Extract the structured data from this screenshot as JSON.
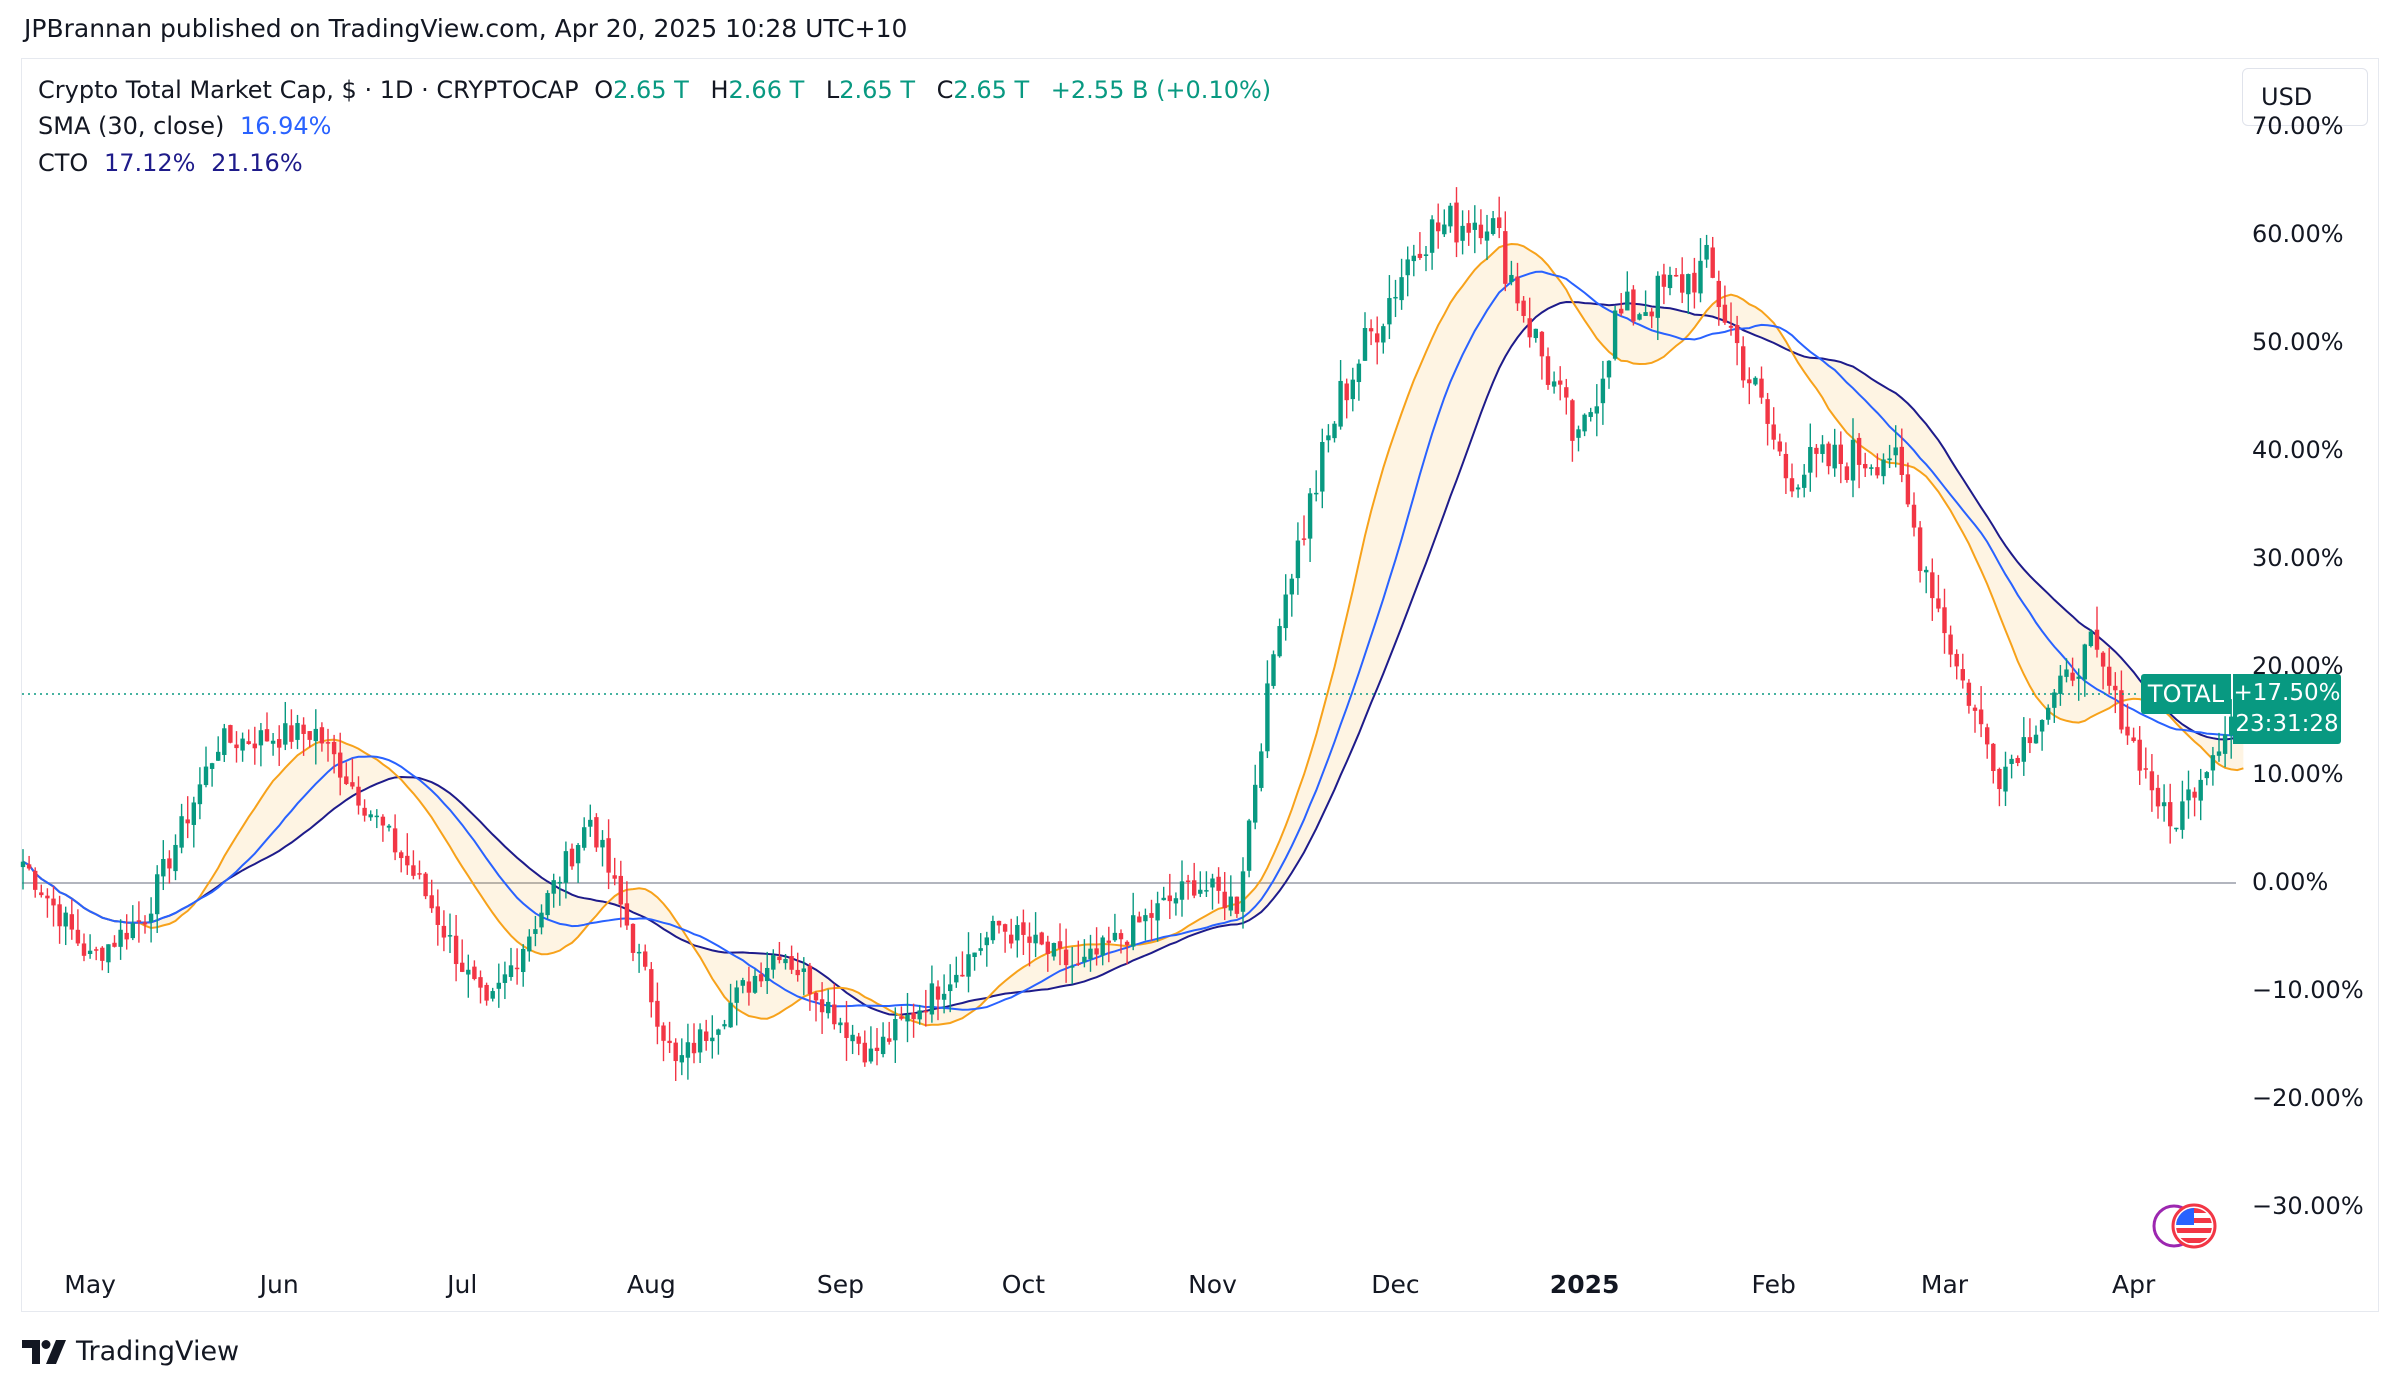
{
  "byline": "JPBrannan published on TradingView.com, Apr 20, 2025 10:28 UTC+10",
  "legend": {
    "symbol": "Crypto Total Market Cap, $ · 1D · CRYPTOCAP",
    "open_label": "O",
    "open": "2.65 T",
    "high_label": "H",
    "high": "2.66 T",
    "low_label": "L",
    "low": "2.65 T",
    "close_label": "C",
    "close": "2.65 T",
    "change": "+2.55 B (+0.10%)",
    "sma_label": "SMA (30, close)",
    "sma_value": "16.94%",
    "cto_label": "CTO",
    "cto_value_1": "17.12%",
    "cto_value_2": "21.16%"
  },
  "currency_button": "USD",
  "price_badge": {
    "symbol": "TOTAL",
    "value": "+17.50%",
    "countdown": "23:31:28"
  },
  "footer_brand": "TradingView",
  "colors": {
    "up": "#089981",
    "down": "#f23645",
    "sma": "#2962ff",
    "cto_fast": "#f7a21b",
    "cto_slow": "#1e1b8a",
    "cto_mid": "#b2b5be"
  },
  "chart_data": {
    "type": "candlestick",
    "y_axis_unit": "percent",
    "ylim": [
      -35,
      72
    ],
    "y_ticks": [
      "−30.00%",
      "−20.00%",
      "−10.00%",
      "0.00%",
      "10.00%",
      "20.00%",
      "30.00%",
      "40.00%",
      "50.00%",
      "60.00%",
      "70.00%"
    ],
    "x_ticks": [
      "May",
      "Jun",
      "Jul",
      "Aug",
      "Sep",
      "Oct",
      "Nov",
      "Dec",
      "2025",
      "Feb",
      "Mar",
      "Apr"
    ],
    "last_value": 17.5,
    "key_points": [
      {
        "date": "2024-04-20",
        "value": 2
      },
      {
        "date": "2024-05-01",
        "value": -7
      },
      {
        "date": "2024-05-10",
        "value": -3
      },
      {
        "date": "2024-05-22",
        "value": 13
      },
      {
        "date": "2024-06-07",
        "value": 14
      },
      {
        "date": "2024-06-24",
        "value": 0
      },
      {
        "date": "2024-07-05",
        "value": -12
      },
      {
        "date": "2024-07-22",
        "value": 6
      },
      {
        "date": "2024-08-05",
        "value": -17
      },
      {
        "date": "2024-08-22",
        "value": -6
      },
      {
        "date": "2024-09-06",
        "value": -16
      },
      {
        "date": "2024-09-27",
        "value": -4
      },
      {
        "date": "2024-10-10",
        "value": -8
      },
      {
        "date": "2024-10-29",
        "value": 0
      },
      {
        "date": "2024-11-05",
        "value": -2
      },
      {
        "date": "2024-11-12",
        "value": 25
      },
      {
        "date": "2024-11-22",
        "value": 45
      },
      {
        "date": "2024-12-05",
        "value": 60
      },
      {
        "date": "2024-12-16",
        "value": 62
      },
      {
        "date": "2024-12-31",
        "value": 40
      },
      {
        "date": "2025-01-06",
        "value": 52
      },
      {
        "date": "2025-01-21",
        "value": 57
      },
      {
        "date": "2025-02-03",
        "value": 38
      },
      {
        "date": "2025-02-20",
        "value": 40
      },
      {
        "date": "2025-03-03",
        "value": 20
      },
      {
        "date": "2025-03-10",
        "value": 10
      },
      {
        "date": "2025-03-25",
        "value": 22
      },
      {
        "date": "2025-04-07",
        "value": 5
      },
      {
        "date": "2025-04-19",
        "value": 17.5
      }
    ]
  }
}
